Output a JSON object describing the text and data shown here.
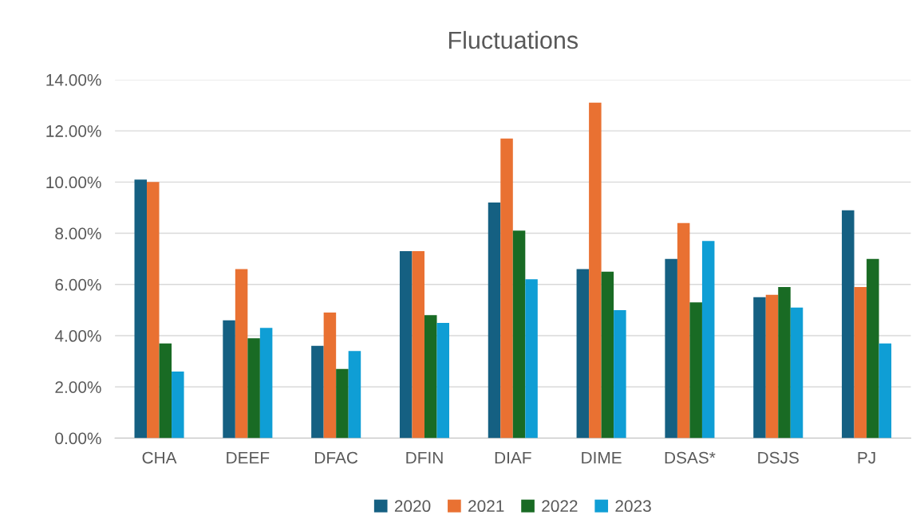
{
  "chart_data": {
    "type": "bar",
    "title": "Fluctuations",
    "categories": [
      "CHA",
      "DEEF",
      "DFAC",
      "DFIN",
      "DIAF",
      "DIME",
      "DSAS*",
      "DSJS",
      "PJ"
    ],
    "series": [
      {
        "name": "2020",
        "color": "#156082",
        "values": [
          10.1,
          4.6,
          3.6,
          7.3,
          9.2,
          6.6,
          7.0,
          5.5,
          8.9
        ]
      },
      {
        "name": "2021",
        "color": "#e97132",
        "values": [
          10.0,
          6.6,
          4.9,
          7.3,
          11.7,
          13.1,
          8.4,
          5.6,
          5.9
        ]
      },
      {
        "name": "2022",
        "color": "#196b24",
        "values": [
          3.7,
          3.9,
          2.7,
          4.8,
          8.1,
          6.5,
          5.3,
          5.9,
          7.0
        ]
      },
      {
        "name": "2023",
        "color": "#0f9ed5",
        "values": [
          2.6,
          4.3,
          3.4,
          4.5,
          6.2,
          5.0,
          7.7,
          5.1,
          3.7
        ]
      }
    ],
    "ylim": [
      0,
      14
    ],
    "yticks": [
      {
        "value": 0,
        "label": "0.00%"
      },
      {
        "value": 2,
        "label": "2.00%"
      },
      {
        "value": 4,
        "label": "4.00%"
      },
      {
        "value": 6,
        "label": "6.00%"
      },
      {
        "value": 8,
        "label": "8.00%"
      },
      {
        "value": 10,
        "label": "10.00%"
      },
      {
        "value": 12,
        "label": "12.00%"
      },
      {
        "value": 14,
        "label": "14.00%"
      }
    ],
    "grid": "y",
    "legend": "bottom"
  }
}
